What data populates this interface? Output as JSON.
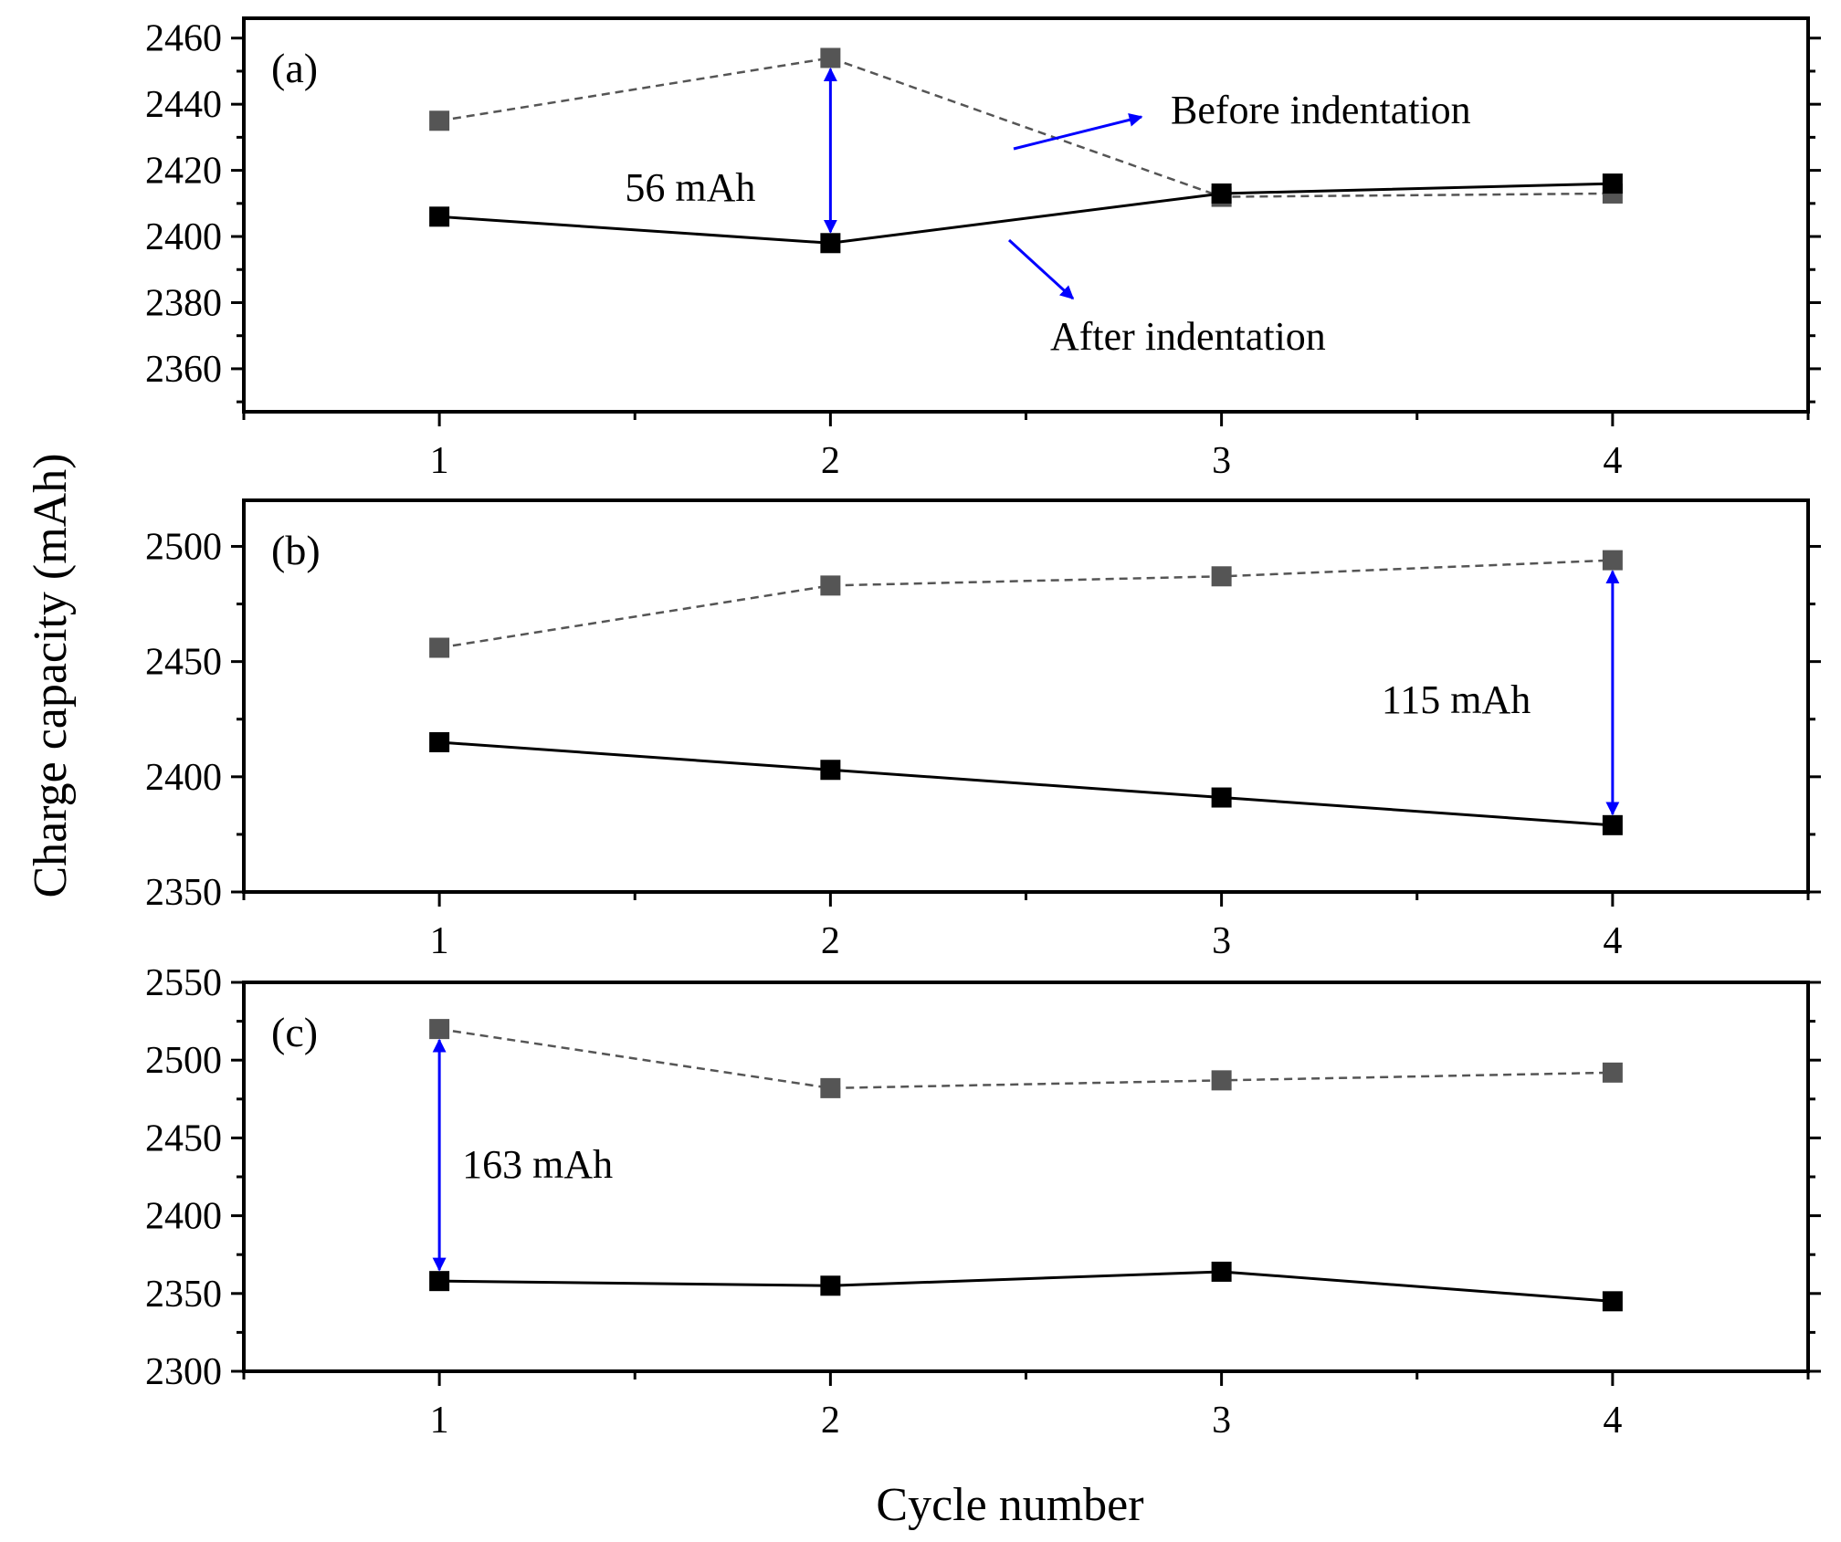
{
  "figure": {
    "y_axis_title": "Charge capacity (mAh)",
    "x_axis_title": "Cycle number"
  },
  "chart_data": [
    {
      "type": "line",
      "panel_label": "(a)",
      "title": "",
      "xlabel": "Cycle number",
      "ylabel": "Charge capacity (mAh)",
      "categories": [
        1,
        2,
        3,
        4
      ],
      "x_ticks": [
        "1",
        "2",
        "3",
        "4"
      ],
      "xlim": [
        0.5,
        4.5
      ],
      "ylim": [
        2347,
        2466
      ],
      "y_ticks": [
        2360,
        2380,
        2400,
        2420,
        2440,
        2460
      ],
      "y_tick_labels": [
        "2360",
        "2380",
        "2400",
        "2420",
        "2440",
        "2460"
      ],
      "series": [
        {
          "name": "Before indentation",
          "style": "dashed",
          "color": "#555555",
          "values": [
            2435,
            2454,
            2412,
            2413
          ]
        },
        {
          "name": "After indentation",
          "style": "solid",
          "color": "#000000",
          "values": [
            2406,
            2398,
            2413,
            2416
          ]
        }
      ],
      "difference": {
        "label": "56 mAh",
        "x": 2,
        "y_from": 2454,
        "y_to": 2398,
        "color": "#0000ff"
      },
      "legend_callouts": [
        {
          "text": "Before indentation",
          "series": 0
        },
        {
          "text": "After indentation",
          "series": 1
        }
      ]
    },
    {
      "type": "line",
      "panel_label": "(b)",
      "title": "",
      "xlabel": "Cycle number",
      "ylabel": "Charge capacity (mAh)",
      "categories": [
        1,
        2,
        3,
        4
      ],
      "x_ticks": [
        "1",
        "2",
        "3",
        "4"
      ],
      "xlim": [
        0.5,
        4.5
      ],
      "ylim": [
        2350,
        2520
      ],
      "y_ticks": [
        2350,
        2400,
        2450,
        2500
      ],
      "y_tick_labels": [
        "2350",
        "2400",
        "2450",
        "2500"
      ],
      "series": [
        {
          "name": "Before indentation",
          "style": "dashed",
          "color": "#555555",
          "values": [
            2456,
            2483,
            2487,
            2494
          ]
        },
        {
          "name": "After indentation",
          "style": "solid",
          "color": "#000000",
          "values": [
            2415,
            2403,
            2391,
            2379
          ]
        }
      ],
      "difference": {
        "label": "115 mAh",
        "x": 4,
        "y_from": 2494,
        "y_to": 2379,
        "color": "#0000ff"
      }
    },
    {
      "type": "line",
      "panel_label": "(c)",
      "title": "",
      "xlabel": "Cycle number",
      "ylabel": "Charge capacity (mAh)",
      "categories": [
        1,
        2,
        3,
        4
      ],
      "x_ticks": [
        "1",
        "2",
        "3",
        "4"
      ],
      "xlim": [
        0.5,
        4.5
      ],
      "ylim": [
        2300,
        2550
      ],
      "y_ticks": [
        2300,
        2350,
        2400,
        2450,
        2500,
        2550
      ],
      "y_tick_labels": [
        "2300",
        "2350",
        "2400",
        "2450",
        "2500",
        "2550"
      ],
      "series": [
        {
          "name": "Before indentation",
          "style": "dashed",
          "color": "#555555",
          "values": [
            2520,
            2482,
            2487,
            2492
          ]
        },
        {
          "name": "After indentation",
          "style": "solid",
          "color": "#000000",
          "values": [
            2358,
            2355,
            2364,
            2345
          ]
        }
      ],
      "difference": {
        "label": "163 mAh",
        "x": 1,
        "y_from": 2520,
        "y_to": 2358,
        "color": "#0000ff"
      }
    }
  ]
}
